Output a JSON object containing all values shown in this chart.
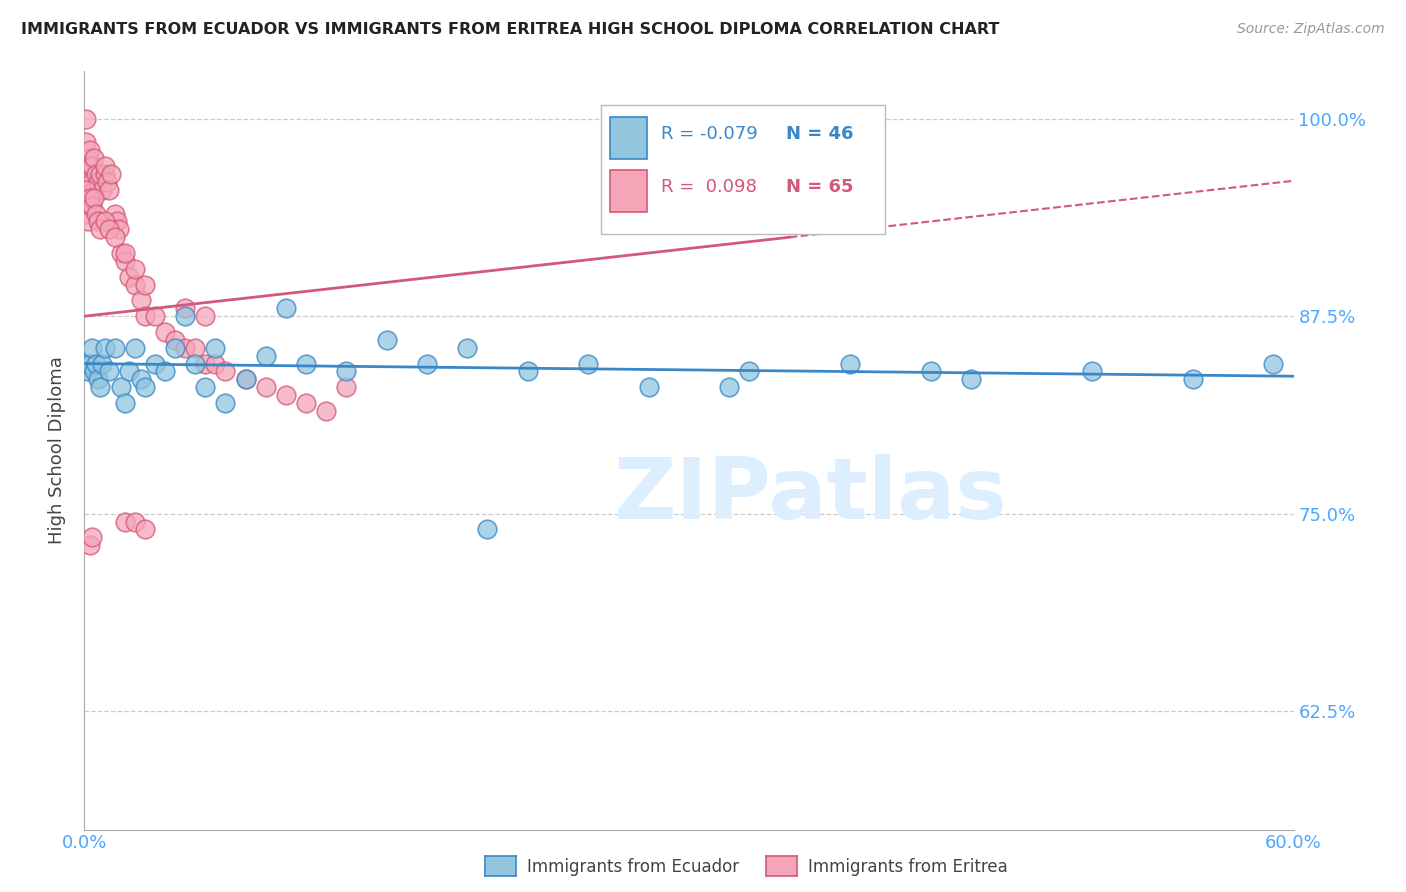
{
  "title": "IMMIGRANTS FROM ECUADOR VS IMMIGRANTS FROM ERITREA HIGH SCHOOL DIPLOMA CORRELATION CHART",
  "source": "Source: ZipAtlas.com",
  "ylabel": "High School Diploma",
  "xlim": [
    0.0,
    0.6
  ],
  "ylim": [
    0.55,
    1.03
  ],
  "yticks": [
    0.625,
    0.75,
    0.875,
    1.0
  ],
  "ytick_labels": [
    "62.5%",
    "75.0%",
    "87.5%",
    "100.0%"
  ],
  "xtick_labels": [
    "0.0%",
    "60.0%"
  ],
  "xtick_pos": [
    0.0,
    0.6
  ],
  "ecuador_color": "#92c5de",
  "eritrea_color": "#f4a6b8",
  "trend_ecuador_color": "#3a87c8",
  "trend_eritrea_color": "#d45879",
  "axis_label_color": "#4da6ff",
  "watermark": "ZIPatlas",
  "watermark_color": "#ddeeff",
  "legend_r_ecuador": "-0.079",
  "legend_n_ecuador": "46",
  "legend_r_eritrea": "0.098",
  "legend_n_eritrea": "65",
  "ecuador_x": [
    0.001,
    0.002,
    0.003,
    0.004,
    0.005,
    0.006,
    0.007,
    0.008,
    0.009,
    0.01,
    0.012,
    0.015,
    0.018,
    0.02,
    0.022,
    0.025,
    0.028,
    0.03,
    0.035,
    0.04,
    0.045,
    0.05,
    0.055,
    0.06,
    0.065,
    0.07,
    0.08,
    0.09,
    0.1,
    0.11,
    0.13,
    0.15,
    0.17,
    0.19,
    0.22,
    0.25,
    0.28,
    0.33,
    0.38,
    0.44,
    0.5,
    0.55,
    0.32,
    0.42,
    0.59,
    0.2
  ],
  "ecuador_y": [
    0.845,
    0.84,
    0.845,
    0.855,
    0.84,
    0.845,
    0.835,
    0.83,
    0.845,
    0.855,
    0.84,
    0.855,
    0.83,
    0.82,
    0.84,
    0.855,
    0.835,
    0.83,
    0.845,
    0.84,
    0.855,
    0.875,
    0.845,
    0.83,
    0.855,
    0.82,
    0.835,
    0.85,
    0.88,
    0.845,
    0.84,
    0.86,
    0.845,
    0.855,
    0.84,
    0.845,
    0.83,
    0.84,
    0.845,
    0.835,
    0.84,
    0.835,
    0.83,
    0.84,
    0.845,
    0.74
  ],
  "eritrea_x": [
    0.001,
    0.001,
    0.002,
    0.002,
    0.003,
    0.003,
    0.004,
    0.004,
    0.005,
    0.005,
    0.006,
    0.007,
    0.008,
    0.009,
    0.01,
    0.01,
    0.011,
    0.012,
    0.013,
    0.015,
    0.016,
    0.017,
    0.018,
    0.02,
    0.022,
    0.025,
    0.028,
    0.03,
    0.035,
    0.04,
    0.045,
    0.05,
    0.055,
    0.06,
    0.065,
    0.07,
    0.08,
    0.09,
    0.1,
    0.11,
    0.12,
    0.13,
    0.001,
    0.001,
    0.002,
    0.002,
    0.003,
    0.004,
    0.005,
    0.006,
    0.007,
    0.008,
    0.01,
    0.012,
    0.015,
    0.02,
    0.025,
    0.03,
    0.05,
    0.06,
    0.003,
    0.004,
    0.02,
    0.025,
    0.03
  ],
  "eritrea_y": [
    1.0,
    0.985,
    0.975,
    0.965,
    0.98,
    0.97,
    0.97,
    0.96,
    0.975,
    0.955,
    0.965,
    0.96,
    0.965,
    0.955,
    0.965,
    0.97,
    0.96,
    0.955,
    0.965,
    0.94,
    0.935,
    0.93,
    0.915,
    0.91,
    0.9,
    0.895,
    0.885,
    0.875,
    0.875,
    0.865,
    0.86,
    0.855,
    0.855,
    0.845,
    0.845,
    0.84,
    0.835,
    0.83,
    0.825,
    0.82,
    0.815,
    0.83,
    0.955,
    0.94,
    0.945,
    0.935,
    0.95,
    0.945,
    0.95,
    0.94,
    0.935,
    0.93,
    0.935,
    0.93,
    0.925,
    0.915,
    0.905,
    0.895,
    0.88,
    0.875,
    0.73,
    0.735,
    0.745,
    0.745,
    0.74
  ]
}
